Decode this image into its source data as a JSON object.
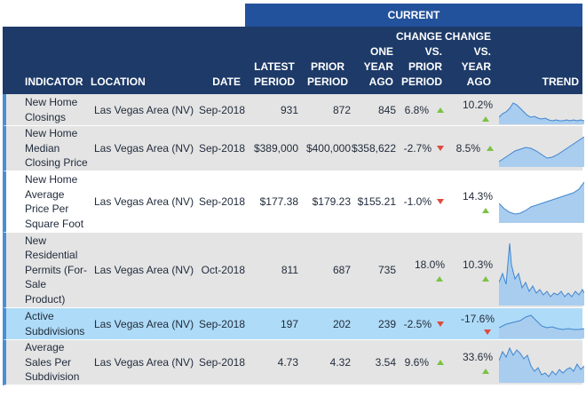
{
  "current_label": "CURRENT",
  "headers": {
    "indicator": "INDICATOR",
    "location": "LOCATION",
    "date": "DATE",
    "latest": "LATEST\nPERIOD",
    "prior": "PRIOR\nPERIOD",
    "one_year_ago": "ONE\nYEAR\nAGO",
    "chg_prior": "CHANGE\nVS.\nPRIOR\nPERIOD",
    "chg_year": "CHANGE\nVS.\nYEAR\nAGO",
    "trend": "TREND"
  },
  "colors": {
    "up": "#7cc242",
    "down": "#e04a3c",
    "spark_fill": "#a9cdef",
    "spark_line": "#3f86cf"
  },
  "rows": [
    {
      "indicator": "New Home\nClosings",
      "location": "Las Vegas Area (NV)",
      "date": "Sep-2018",
      "latest": "931",
      "prior": "872",
      "year_ago": "845",
      "chg_prior": "6.8%",
      "chg_prior_dir": "up",
      "chg_year": "10.2%",
      "chg_year_dir": "up"
    },
    {
      "indicator": "New Home\nMedian\nClosing Price",
      "location": "Las Vegas Area (NV)",
      "date": "Sep-2018",
      "latest": "$389,000",
      "prior": "$400,000",
      "year_ago": "$358,622",
      "chg_prior": "-2.7%",
      "chg_prior_dir": "down",
      "chg_year": "8.5%",
      "chg_year_dir": "up"
    },
    {
      "indicator": "New Home\nAverage\nPrice Per\nSquare Foot",
      "location": "Las Vegas Area (NV)",
      "date": "Sep-2018",
      "latest": "$177.38",
      "prior": "$179.23",
      "year_ago": "$155.21",
      "chg_prior": "-1.0%",
      "chg_prior_dir": "down",
      "chg_year": "14.3%",
      "chg_year_dir": "up"
    },
    {
      "indicator": "New\nResidential\nPermits (For-\nSale\nProduct)",
      "location": "Las Vegas Area (NV)",
      "date": "Oct-2018",
      "latest": "811",
      "prior": "687",
      "year_ago": "735",
      "chg_prior": "18.0%",
      "chg_prior_dir": "up",
      "chg_year": "10.3%",
      "chg_year_dir": "up"
    },
    {
      "indicator": "Active\nSubdivisions",
      "location": "Las Vegas Area (NV)",
      "date": "Sep-2018",
      "latest": "197",
      "prior": "202",
      "year_ago": "239",
      "chg_prior": "-2.5%",
      "chg_prior_dir": "down",
      "chg_year": "-17.6%",
      "chg_year_dir": "down"
    },
    {
      "indicator": "Average\nSales Per\nSubdivision",
      "location": "Las Vegas Area (NV)",
      "date": "Sep-2018",
      "latest": "4.73",
      "prior": "4.32",
      "year_ago": "3.54",
      "chg_prior": "9.6%",
      "chg_prior_dir": "up",
      "chg_year": "33.6%",
      "chg_year_dir": "up"
    }
  ]
}
